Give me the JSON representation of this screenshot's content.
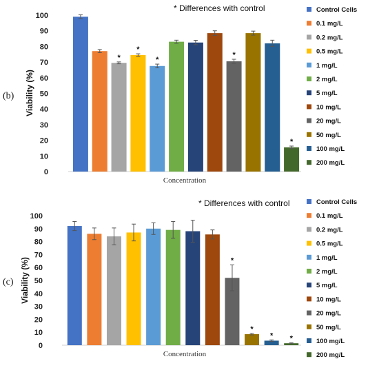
{
  "chart_data": [
    {
      "type": "bar",
      "panel_label": "(b)",
      "note": "*  Differences with control",
      "ylabel": "Viability (%)",
      "xlabel": "Concentration",
      "ylim": [
        0,
        100
      ],
      "yticks": [
        "0",
        "10",
        "20",
        "30",
        "40",
        "50",
        "60",
        "70",
        "80",
        "90",
        "100"
      ],
      "grid": false,
      "legend_position": "right",
      "categories": [
        "Control Cells",
        "0.1 mg/L",
        "0.2 mg/L",
        "0.5 mg/L",
        "1 mg/L",
        "2 mg/L",
        "5 mg/L",
        "10 mg/L",
        "20 mg/L",
        "50 mg/L",
        "100 mg/L",
        "200 mg/L"
      ],
      "values": [
        99,
        77,
        69.5,
        74.5,
        67.5,
        83,
        82.5,
        88.5,
        70.5,
        88.5,
        82,
        15.5
      ],
      "errors": [
        1.2,
        1,
        0.6,
        0.8,
        1.2,
        1,
        1.4,
        1.5,
        1.3,
        1.3,
        2,
        0.8
      ],
      "significant": [
        false,
        false,
        true,
        true,
        true,
        false,
        false,
        false,
        true,
        false,
        false,
        true
      ],
      "star": "*",
      "colors": [
        "#4472C4",
        "#ED7D31",
        "#A5A5A5",
        "#FFC000",
        "#5B9BD5",
        "#70AD47",
        "#264478",
        "#9E480E",
        "#636363",
        "#997300",
        "#255E91",
        "#43682B"
      ]
    },
    {
      "type": "bar",
      "panel_label": "(c)",
      "note": "*  Differences with control",
      "ylabel": "Viability (%)",
      "xlabel": "Concentration",
      "ylim": [
        0,
        100
      ],
      "yticks": [
        "0",
        "10",
        "20",
        "30",
        "40",
        "50",
        "60",
        "70",
        "80",
        "90",
        "100"
      ],
      "grid": false,
      "legend_position": "right",
      "categories": [
        "Control Cells",
        "0.1 mg/L",
        "0.2 mg/L",
        "0.5 mg/L",
        "1 mg/L",
        "2 mg/L",
        "5 mg/L",
        "10 mg/L",
        "20 mg/L",
        "50 mg/L",
        "100 mg/L",
        "200 mg/L"
      ],
      "values": [
        92,
        86,
        84,
        87,
        90,
        89,
        88,
        85.5,
        52,
        8.5,
        3.5,
        1.5
      ],
      "errors": [
        3.5,
        4.5,
        6.5,
        6.5,
        4.5,
        6.5,
        8.5,
        3.5,
        10,
        0.6,
        0.6,
        0.3
      ],
      "significant": [
        false,
        false,
        false,
        false,
        false,
        false,
        false,
        false,
        true,
        true,
        true,
        true
      ],
      "star": "*",
      "colors": [
        "#4472C4",
        "#ED7D31",
        "#A5A5A5",
        "#FFC000",
        "#5B9BD5",
        "#70AD47",
        "#264478",
        "#9E480E",
        "#636363",
        "#997300",
        "#255E91",
        "#43682B"
      ]
    }
  ]
}
